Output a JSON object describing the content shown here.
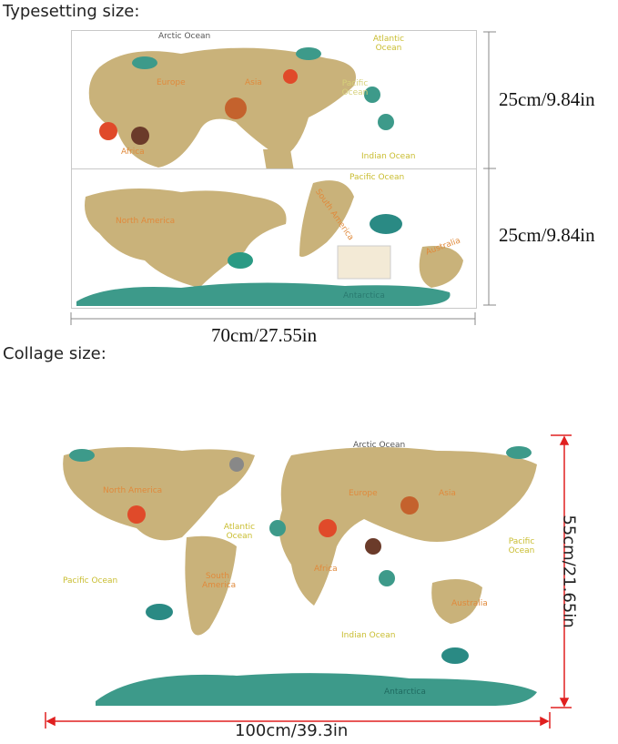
{
  "typesetting": {
    "heading": "Typesetting size:",
    "height_label_top": "25cm/9.84in",
    "height_label_bottom": "25cm/9.84in",
    "width_label": "70cm/27.55in",
    "panel_top_labels": [
      "Arctic Ocean",
      "Atlantic Ocean",
      "Europe",
      "Asia",
      "Pacific Ocean",
      "Africa",
      "Indian Ocean"
    ],
    "panel_bottom_labels": [
      "Pacific Ocean",
      "North America",
      "South America",
      "Australia",
      "Antarctica"
    ]
  },
  "collage": {
    "heading": "Collage size:",
    "height_label": "55cm/21.65in",
    "width_label": "100cm/39.3in",
    "labels": [
      "Arctic Ocean",
      "North America",
      "Atlantic Ocean",
      "Europe",
      "Asia",
      "Pacific Ocean",
      "Pacific Ocean",
      "South America",
      "Africa",
      "Indian Ocean",
      "Australia",
      "Antarctica"
    ]
  },
  "colors": {
    "land": "#c9b27a",
    "antarctica": "#3d9a8a",
    "ocean_label": "#d6c94a",
    "continent_label": "#e08a3c",
    "dimension_line": "#e02020"
  }
}
